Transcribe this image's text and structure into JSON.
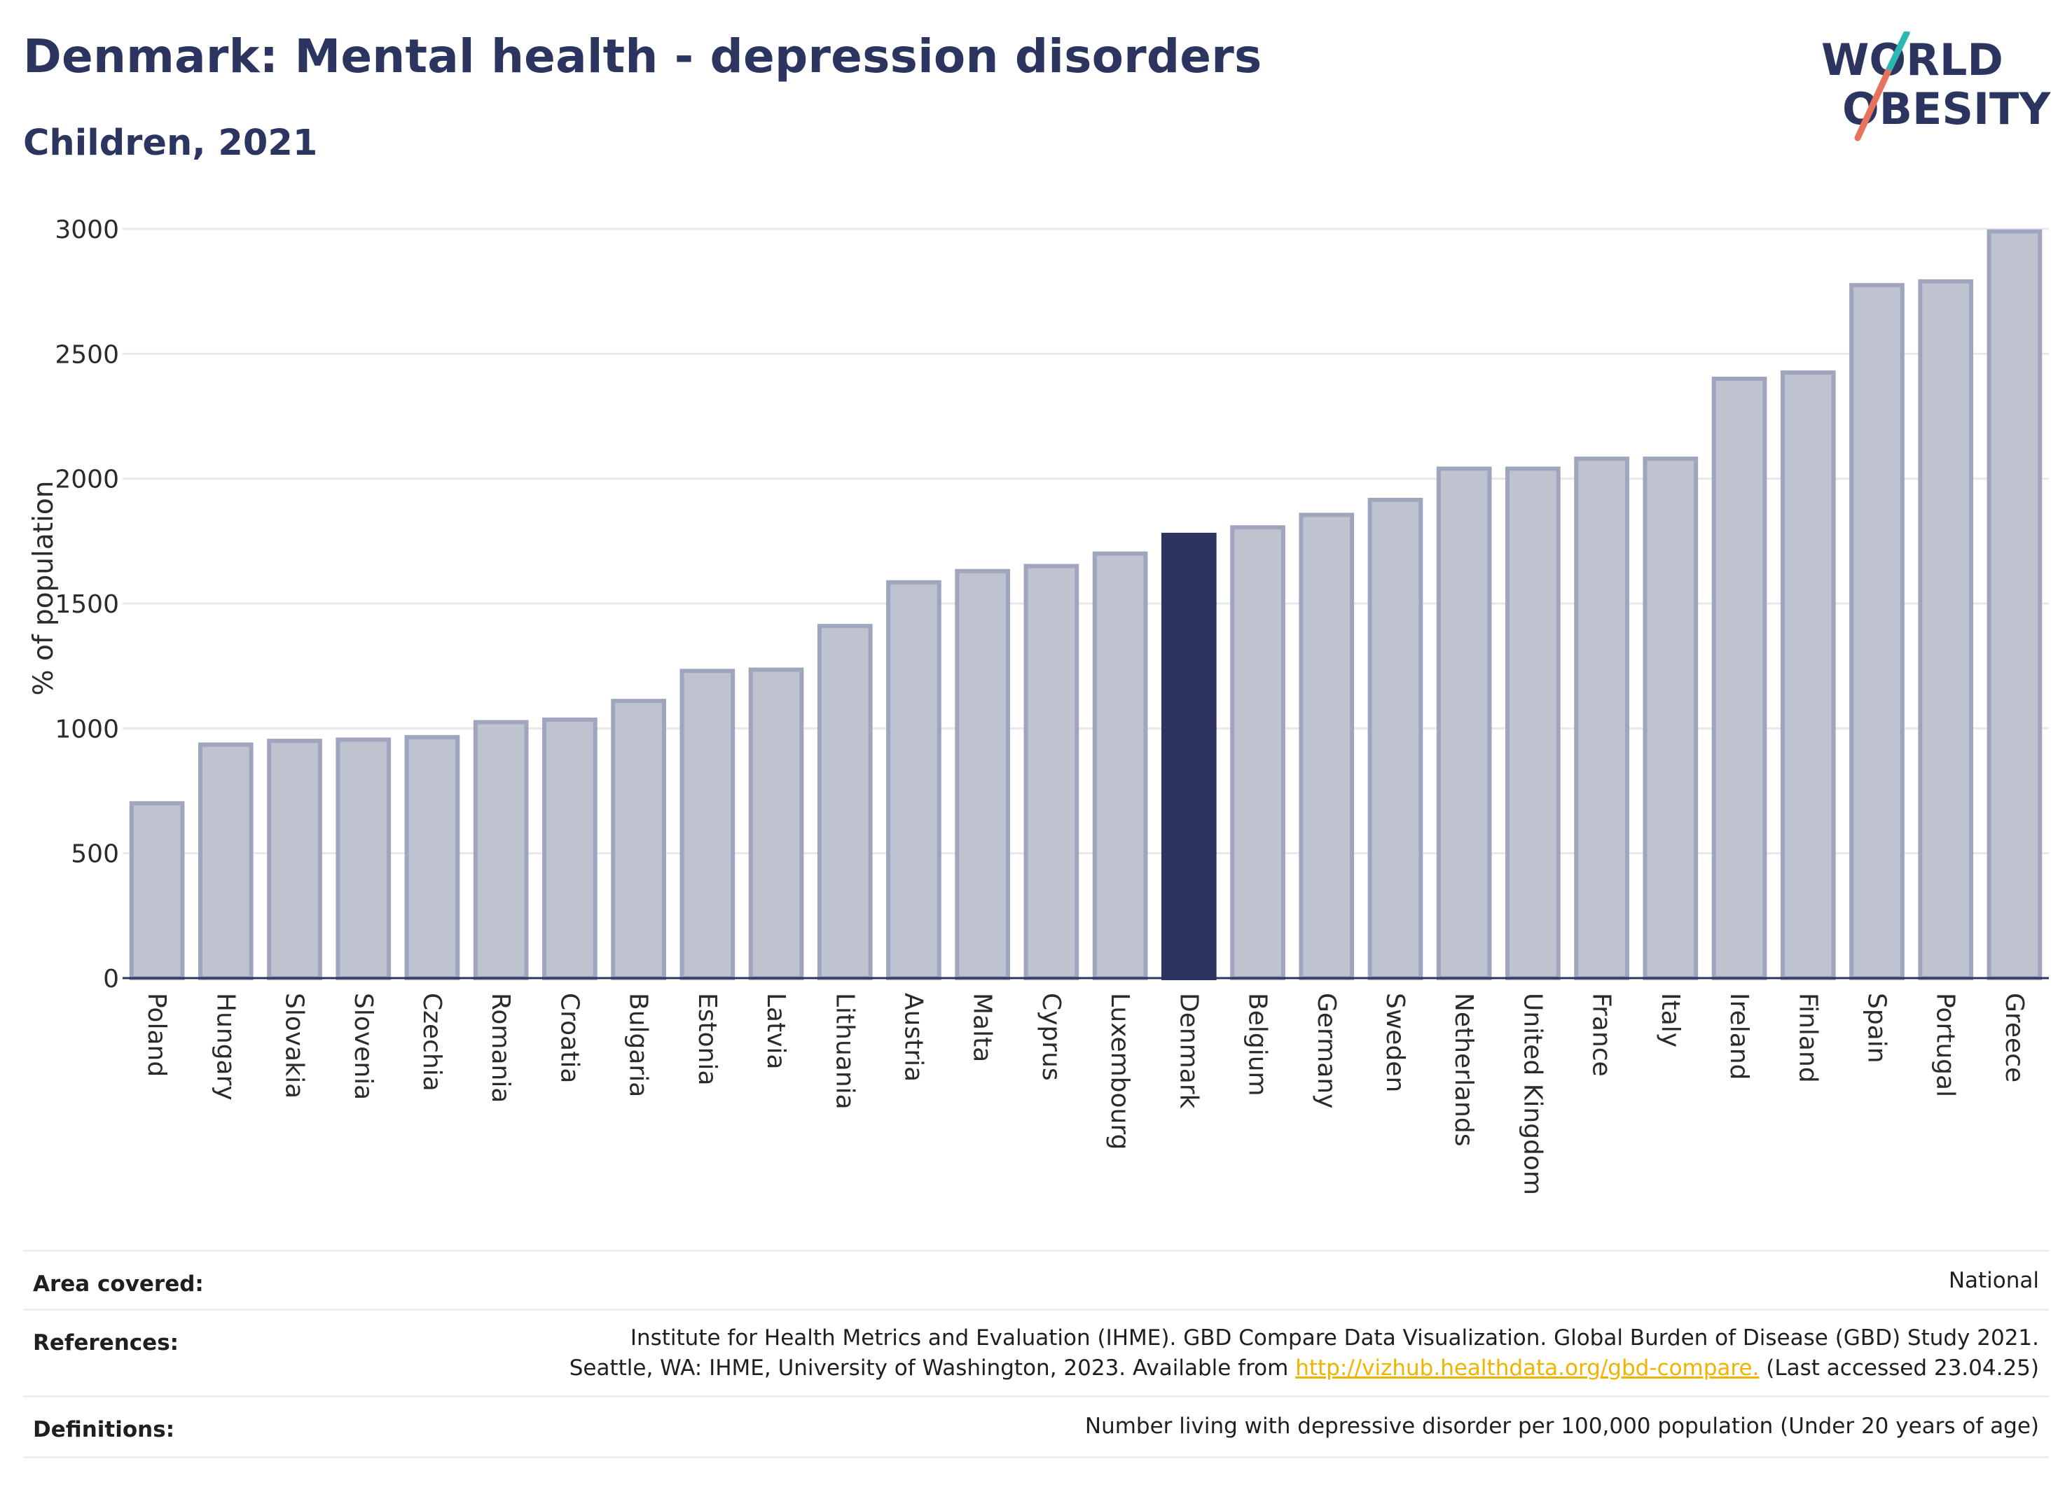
{
  "header": {
    "title": "Denmark: Mental health - depression disorders",
    "subtitle": "Children, 2021"
  },
  "logo": {
    "line1": "WORLD",
    "line2": "OBESITY",
    "slash_colors": [
      "#2bb8b0",
      "#e8735d"
    ]
  },
  "chart_data": {
    "type": "bar",
    "ylabel": "% of population",
    "xlabel": "",
    "ylim": [
      0,
      3000
    ],
    "yticks": [
      0,
      500,
      1000,
      1500,
      2000,
      2500,
      3000
    ],
    "grid": true,
    "highlight": "Denmark",
    "colors": {
      "bar": "#bfc3d0",
      "bar_border": "#9ea5bd",
      "highlight": "#2b3560",
      "axis": "#2b3560",
      "grid": "#e6e8ee"
    },
    "categories": [
      "Poland",
      "Hungary",
      "Slovakia",
      "Slovenia",
      "Czechia",
      "Romania",
      "Croatia",
      "Bulgaria",
      "Estonia",
      "Latvia",
      "Lithuania",
      "Austria",
      "Malta",
      "Cyprus",
      "Luxembourg",
      "Denmark",
      "Belgium",
      "Germany",
      "Sweden",
      "Netherlands",
      "United Kingdom",
      "France",
      "Italy",
      "Ireland",
      "Finland",
      "Spain",
      "Portugal",
      "Greece"
    ],
    "values": [
      700,
      935,
      950,
      955,
      965,
      1025,
      1035,
      1110,
      1230,
      1235,
      1410,
      1585,
      1630,
      1650,
      1700,
      1775,
      1805,
      1855,
      1915,
      2040,
      2040,
      2080,
      2080,
      2400,
      2425,
      2775,
      2790,
      2990
    ]
  },
  "info": {
    "area": {
      "label": "Area covered:",
      "value": "National"
    },
    "references": {
      "label": "References:",
      "line1": "Institute for Health Metrics and Evaluation (IHME). GBD Compare Data Visualization. Global Burden of Disease (GBD) Study 2021.",
      "line2_before": "Seattle, WA: IHME, University of Washington, 2023. Available from ",
      "link": "http://vizhub.healthdata.org/gbd-compare.",
      "line2_after": " (Last accessed 23.04.25)"
    },
    "definitions": {
      "label": "Definitions:",
      "value": "Number living with depressive disorder per 100,000 population (Under 20 years of age)"
    }
  }
}
